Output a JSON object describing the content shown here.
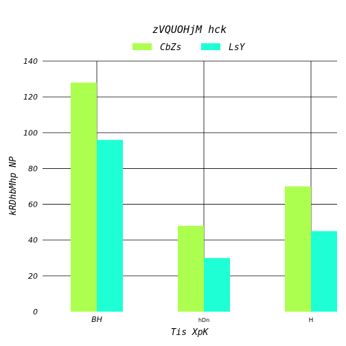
{
  "chart_data": {
    "type": "bar",
    "title": "zVQUOHjM hck",
    "xlabel": "Tis  XpK",
    "ylabel": "kRDhbMhp  NP",
    "categories": [
      "BH",
      "hDn",
      "H"
    ],
    "series": [
      {
        "name": "CbZs",
        "color": "#adff4f",
        "values": [
          128,
          48,
          70
        ]
      },
      {
        "name": "LsY",
        "color": "#1fffd6",
        "values": [
          96,
          30,
          45
        ]
      }
    ],
    "ylim": [
      0,
      140
    ],
    "yticks": [
      0,
      20,
      40,
      60,
      80,
      100,
      120,
      140
    ],
    "grid": true,
    "legend_position": "top-center"
  }
}
